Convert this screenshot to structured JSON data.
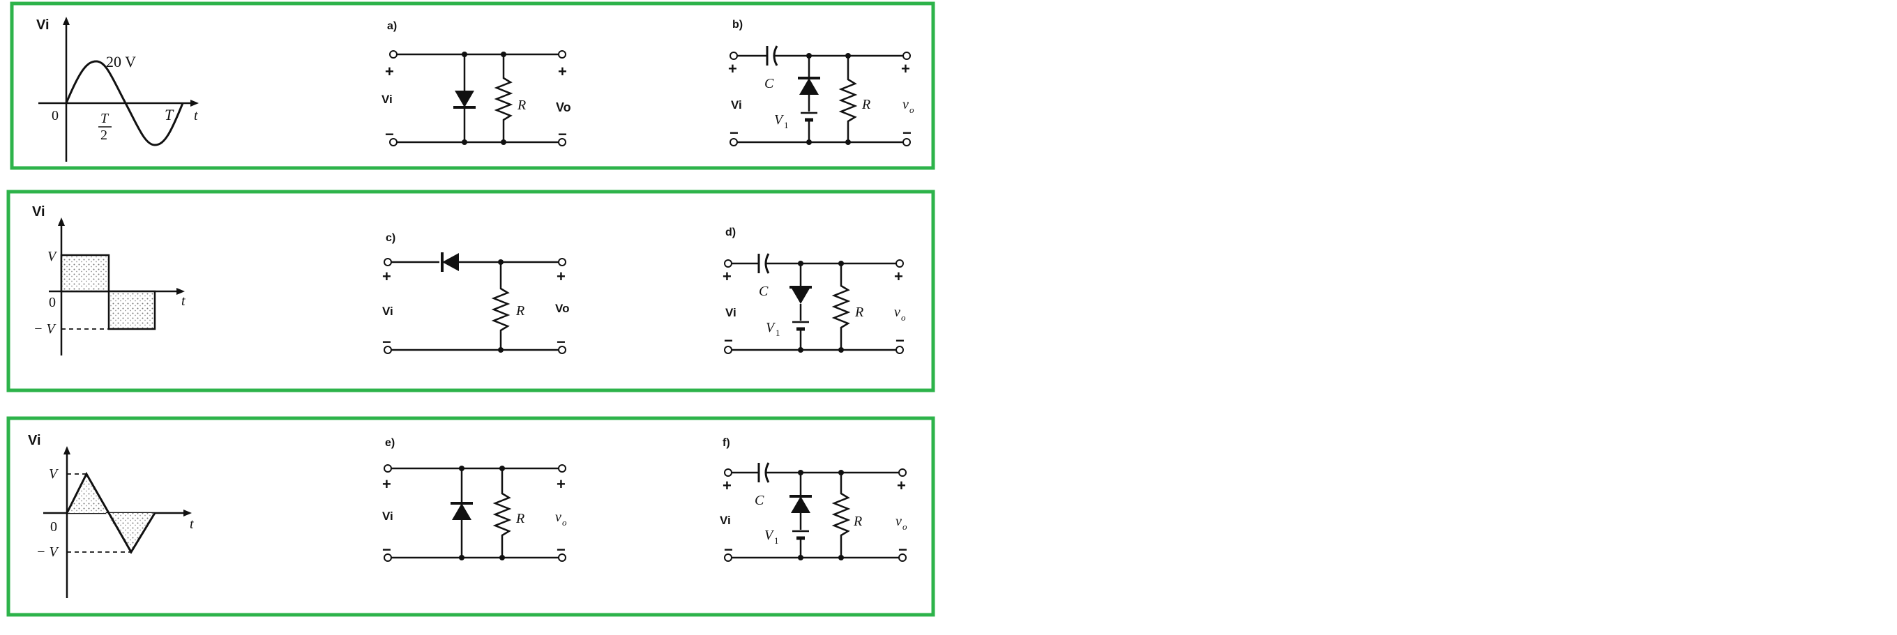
{
  "colors": {
    "panel_border": "#2db34a",
    "ink": "#111111",
    "background": "#ffffff"
  },
  "panel1": {
    "wave": {
      "ylabel": "Vi",
      "amplitude": "20  V",
      "origin": "0",
      "half_period_num": "T",
      "half_period_den": "2",
      "period": "T",
      "t_label": "t"
    },
    "circuit_a": {
      "label": "a)",
      "plus_in": "+",
      "plus_out": "+",
      "minus_in": "−",
      "minus_out": "−",
      "vin": "Vi",
      "vout": "Vo",
      "resistor": "R"
    },
    "circuit_b": {
      "label": "b)",
      "plus_in": "+",
      "plus_out": "+",
      "minus_in": "−",
      "minus_out": "−",
      "vin": "Vi",
      "vout": "v",
      "vout_sub": "o",
      "cap": "C",
      "battery": "V",
      "battery_sub": "1",
      "resistor": "R"
    }
  },
  "panel2": {
    "wave": {
      "ylabel": "Vi",
      "pos_level": "V",
      "neg_level": "− V",
      "origin": "0",
      "t_label": "t"
    },
    "circuit_c": {
      "label": "c)",
      "plus_in": "+",
      "plus_out": "+",
      "minus_in": "−",
      "minus_out": "−",
      "vin": "Vi",
      "vout": "Vo",
      "resistor": "R"
    },
    "circuit_d": {
      "label": "d)",
      "plus_in": "+",
      "plus_out": "+",
      "minus_in": "−",
      "minus_out": "−",
      "vin": "Vi",
      "vout": "v",
      "vout_sub": "o",
      "cap": "C",
      "battery": "V",
      "battery_sub": "1",
      "resistor": "R"
    }
  },
  "panel3": {
    "wave": {
      "ylabel": "Vi",
      "pos_level": "V",
      "neg_level": "− V",
      "origin": "0",
      "t_label": "t"
    },
    "circuit_e": {
      "label": "e)",
      "plus_in": "+",
      "plus_out": "+",
      "minus_in": "−",
      "minus_out": "−",
      "vin": "Vi",
      "vout": "v",
      "vout_sub": "o",
      "resistor": "R"
    },
    "circuit_f": {
      "label": "f)",
      "plus_in": "+",
      "plus_out": "+",
      "minus_in": "−",
      "minus_out": "−",
      "vin": "Vi",
      "vout": "v",
      "vout_sub": "o",
      "cap": "C",
      "battery": "V",
      "battery_sub": "1",
      "resistor": "R"
    }
  }
}
